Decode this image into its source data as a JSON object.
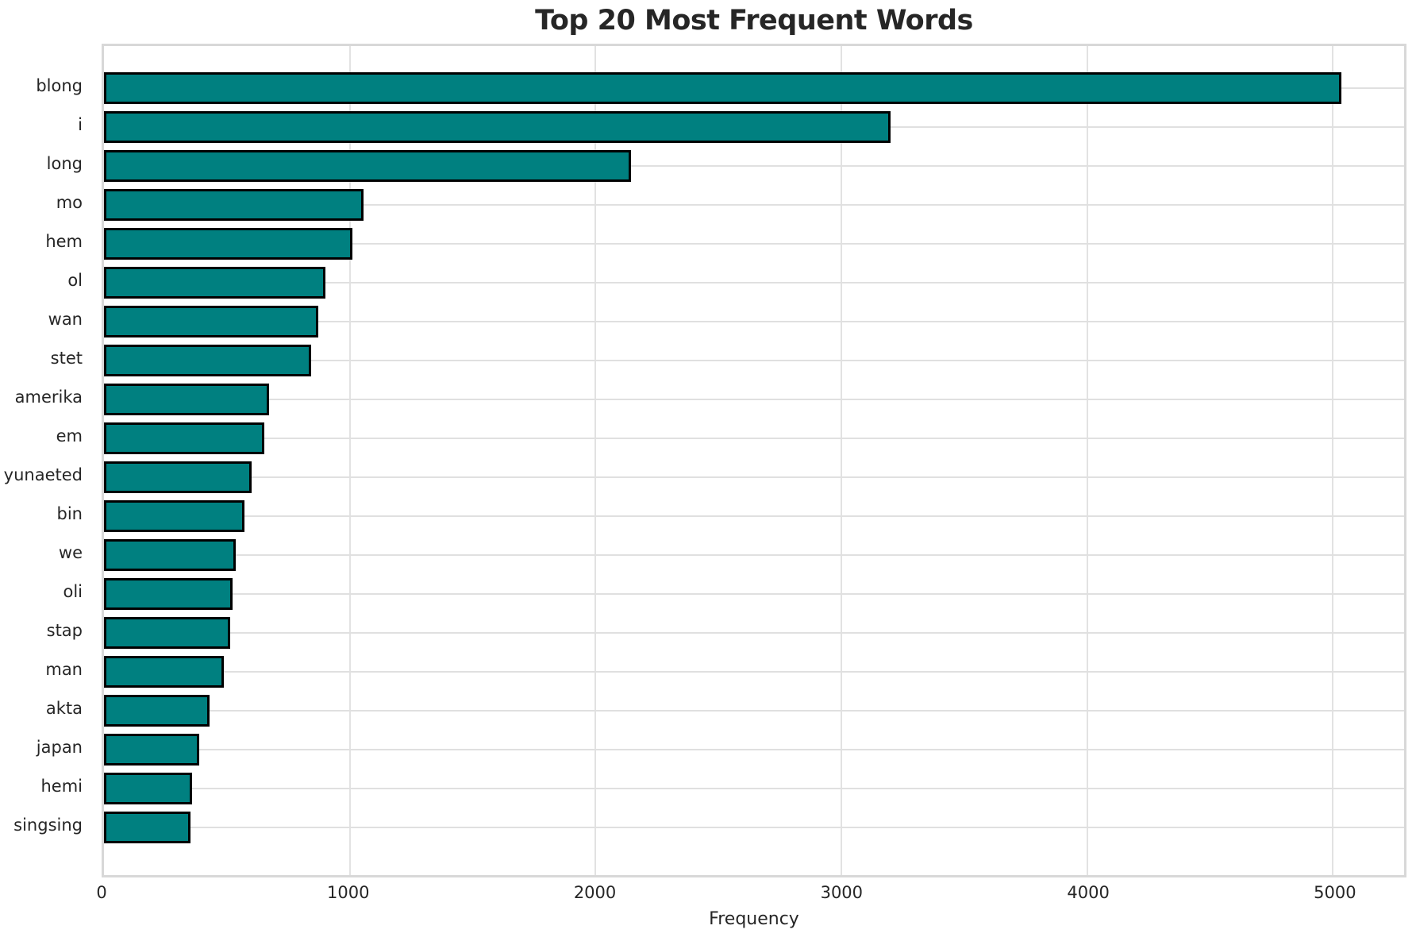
{
  "chart_data": {
    "type": "bar",
    "orientation": "horizontal",
    "title": "Top 20 Most Frequent Words",
    "xlabel": "Frequency",
    "ylabel": "",
    "categories": [
      "blong",
      "i",
      "long",
      "mo",
      "hem",
      "ol",
      "wan",
      "stet",
      "amerika",
      "em",
      "yunaeted",
      "bin",
      "we",
      "oli",
      "stap",
      "man",
      "akta",
      "japan",
      "hemi",
      "singsing"
    ],
    "values": [
      5036,
      3202,
      2145,
      1056,
      1011,
      901,
      872,
      842,
      672,
      652,
      601,
      571,
      537,
      524,
      513,
      488,
      428,
      386,
      360,
      352
    ],
    "xticks": [
      0,
      1000,
      2000,
      3000,
      4000,
      5000
    ],
    "xlim": [
      0,
      5290
    ],
    "grid": true,
    "legend": false,
    "bar_color": "#008080",
    "bar_edge_color": "#000000",
    "grid_color": "#e0e0e0",
    "text_color": "#262626"
  }
}
